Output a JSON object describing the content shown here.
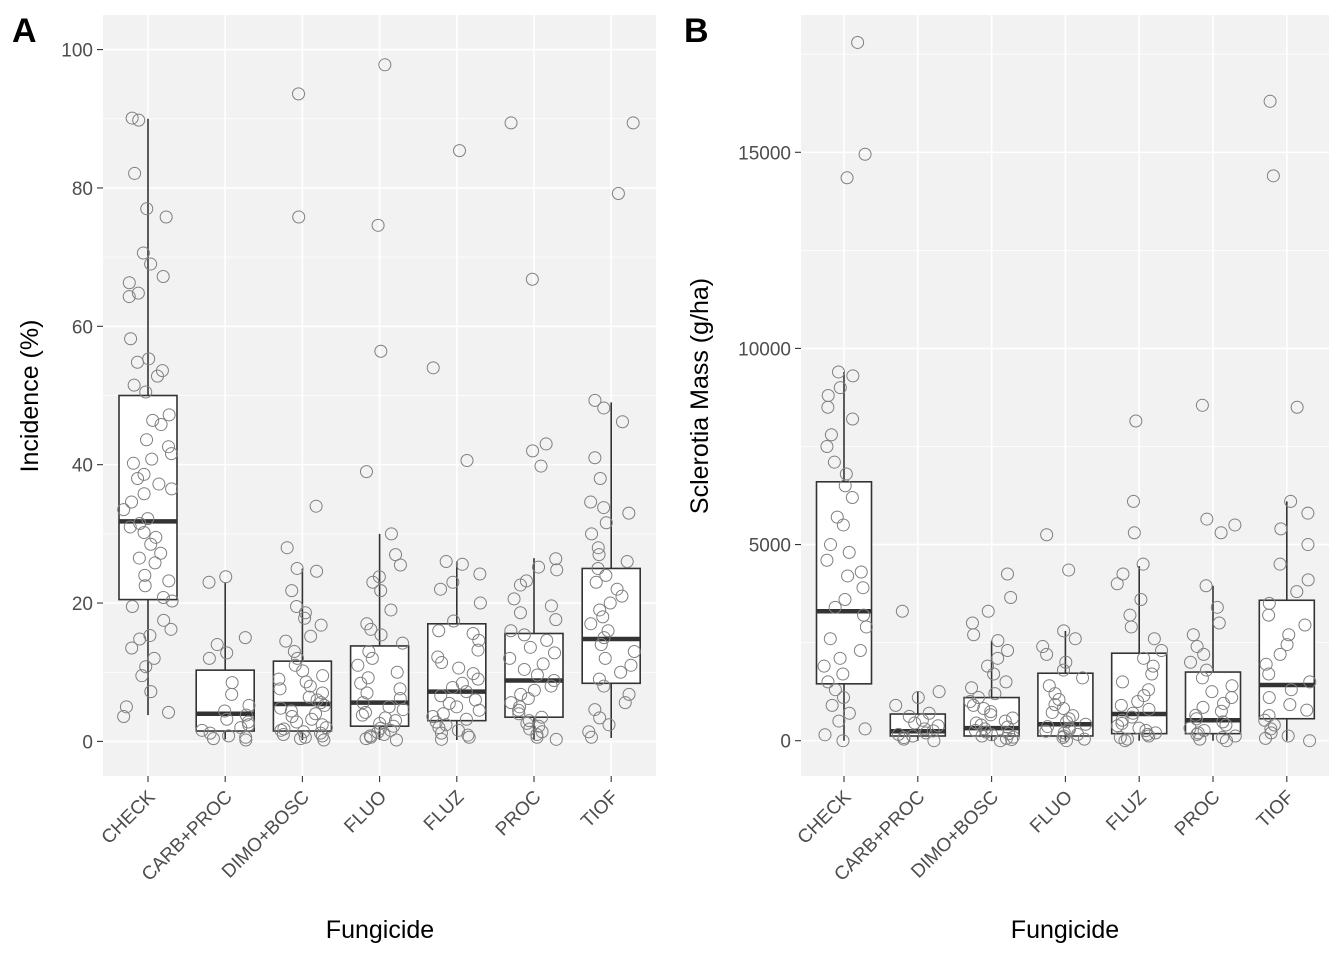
{
  "chart_data": [
    {
      "tag": "A",
      "type": "box",
      "xlabel": "Fungicide",
      "ylabel": "Incidence (%)",
      "ylim": [
        -5,
        105
      ],
      "yticks": [
        0,
        20,
        40,
        60,
        80,
        100
      ],
      "grid": true,
      "categories": [
        "CHECK",
        "CARB+PROC",
        "DIMO+BOSC",
        "FLUO",
        "FLUZ",
        "PROC",
        "TIOF"
      ],
      "boxes": [
        {
          "q1": 20.5,
          "median": 31.8,
          "q3": 50.0,
          "lower": 3.8,
          "upper": 90.0
        },
        {
          "q1": 1.5,
          "median": 4.0,
          "q3": 10.3,
          "lower": 0.3,
          "upper": 23.0
        },
        {
          "q1": 1.5,
          "median": 5.4,
          "q3": 11.6,
          "lower": 0.2,
          "upper": 25.0
        },
        {
          "q1": 2.2,
          "median": 5.6,
          "q3": 13.8,
          "lower": 0.2,
          "upper": 30.0
        },
        {
          "q1": 3.0,
          "median": 7.2,
          "q3": 17.0,
          "lower": 0.2,
          "upper": 26.0
        },
        {
          "q1": 3.5,
          "median": 8.8,
          "q3": 15.6,
          "lower": 0.2,
          "upper": 26.5
        },
        {
          "q1": 8.4,
          "median": 14.8,
          "q3": 25.0,
          "lower": 0.5,
          "upper": 49.0
        }
      ],
      "points": [
        [
          3.6,
          4.2,
          5.0,
          7.2,
          9.5,
          10.8,
          12.0,
          13.5,
          14.8,
          15.3,
          16.2,
          17.5,
          19.5,
          20.3,
          20.8,
          22.5,
          23.2,
          24.0,
          25.8,
          26.5,
          27.2,
          28.5,
          29.5,
          30.2,
          31.0,
          31.5,
          32.2,
          33.5,
          34.6,
          35.8,
          36.5,
          37.2,
          38.0,
          38.6,
          40.2,
          40.8,
          41.6,
          42.6,
          43.6,
          45.8,
          46.4,
          47.2,
          50.5,
          51.5,
          52.8,
          53.6,
          54.8,
          55.3,
          58.2,
          64.3,
          64.8,
          66.3,
          67.2,
          69.0,
          70.6,
          75.8,
          77.0,
          82.1,
          89.8,
          90.1
        ],
        [
          0.2,
          0.4,
          0.6,
          0.8,
          1.2,
          1.6,
          2.0,
          2.4,
          2.8,
          3.2,
          3.8,
          4.4,
          5.2,
          6.8,
          8.5,
          12.0,
          12.8,
          14.0,
          15.0,
          23.0,
          23.8
        ],
        [
          0.2,
          0.4,
          0.6,
          0.8,
          1.0,
          1.2,
          1.4,
          1.6,
          1.8,
          2.0,
          2.4,
          2.8,
          3.2,
          3.6,
          4.0,
          4.4,
          4.8,
          5.2,
          5.6,
          6.0,
          6.4,
          7.0,
          7.6,
          8.0,
          8.6,
          9.0,
          9.5,
          10.2,
          11.0,
          12.0,
          13.0,
          14.5,
          15.2,
          16.8,
          17.8,
          18.6,
          19.5,
          21.8,
          24.6,
          25.0,
          28.0,
          34.0,
          75.8,
          93.6
        ],
        [
          0.2,
          0.4,
          0.6,
          0.8,
          1.0,
          1.3,
          1.6,
          1.9,
          2.2,
          2.6,
          3.0,
          3.4,
          3.8,
          4.2,
          4.6,
          5.0,
          5.6,
          6.2,
          7.0,
          7.6,
          8.4,
          9.2,
          10.0,
          11.0,
          12.0,
          13.0,
          14.2,
          15.4,
          16.2,
          17.0,
          19.0,
          21.8,
          23.0,
          23.8,
          25.5,
          27.0,
          30.0,
          39.0,
          56.4,
          74.6,
          97.8
        ],
        [
          0.3,
          0.6,
          0.9,
          1.2,
          1.6,
          2.0,
          2.4,
          2.8,
          3.2,
          3.6,
          4.0,
          4.5,
          5.0,
          5.5,
          6.0,
          6.6,
          7.2,
          7.8,
          8.4,
          9.0,
          9.8,
          10.6,
          11.4,
          12.2,
          13.2,
          14.6,
          15.6,
          16.0,
          17.4,
          20.0,
          22.0,
          23.0,
          24.2,
          25.6,
          26.0,
          40.6,
          54.0,
          85.4
        ],
        [
          0.3,
          0.6,
          1.0,
          1.4,
          1.8,
          2.2,
          2.6,
          3.0,
          3.5,
          4.0,
          4.5,
          5.0,
          5.6,
          6.2,
          6.8,
          7.4,
          8.0,
          8.8,
          9.6,
          10.4,
          11.2,
          12.0,
          12.8,
          13.6,
          14.6,
          15.4,
          16.0,
          17.6,
          18.6,
          19.6,
          20.6,
          22.6,
          23.2,
          24.8,
          25.2,
          26.4,
          39.8,
          42.0,
          43.0,
          66.8,
          89.4
        ],
        [
          0.6,
          1.4,
          2.4,
          3.4,
          4.6,
          5.6,
          6.8,
          8.0,
          9.0,
          10.0,
          11.0,
          12.0,
          13.0,
          14.0,
          15.0,
          16.0,
          17.0,
          18.0,
          19.0,
          20.0,
          21.0,
          22.0,
          23.0,
          24.0,
          25.0,
          26.0,
          27.0,
          28.0,
          30.0,
          31.6,
          33.0,
          33.8,
          34.6,
          38.0,
          41.0,
          46.2,
          48.2,
          49.3,
          79.2,
          89.4
        ]
      ]
    },
    {
      "tag": "B",
      "type": "box",
      "xlabel": "Fungicide",
      "ylabel": "Sclerotia Mass (g/ha)",
      "ylim": [
        -900,
        18500
      ],
      "yticks": [
        0,
        5000,
        10000,
        15000
      ],
      "grid": true,
      "categories": [
        "CHECK",
        "CARB+PROC",
        "DIMO+BOSC",
        "FLUO",
        "FLUZ",
        "PROC",
        "TIOF"
      ],
      "boxes": [
        {
          "q1": 1450,
          "median": 3300,
          "q3": 6600,
          "lower": 0,
          "upper": 9400
        },
        {
          "q1": 120,
          "median": 240,
          "q3": 680,
          "lower": 0,
          "upper": 1250
        },
        {
          "q1": 120,
          "median": 320,
          "q3": 1100,
          "lower": 0,
          "upper": 2550
        },
        {
          "q1": 120,
          "median": 420,
          "q3": 1720,
          "lower": 0,
          "upper": 2800
        },
        {
          "q1": 180,
          "median": 680,
          "q3": 2230,
          "lower": 0,
          "upper": 4450
        },
        {
          "q1": 180,
          "median": 520,
          "q3": 1750,
          "lower": 0,
          "upper": 3950
        },
        {
          "q1": 560,
          "median": 1420,
          "q3": 3580,
          "lower": 0,
          "upper": 6100
        }
      ],
      "points": [
        [
          0,
          150,
          300,
          500,
          700,
          900,
          1100,
          1300,
          1500,
          1700,
          1900,
          2100,
          2300,
          2600,
          2900,
          3200,
          3400,
          3600,
          3900,
          4200,
          4300,
          4600,
          4800,
          5000,
          5500,
          5700,
          6200,
          6500,
          6800,
          7100,
          7500,
          7800,
          8200,
          8500,
          8800,
          9000,
          9300,
          9400,
          14350,
          14950,
          17800
        ],
        [
          0,
          40,
          80,
          120,
          160,
          200,
          250,
          300,
          380,
          450,
          520,
          620,
          700,
          900,
          1100,
          1250,
          3300
        ],
        [
          0,
          30,
          60,
          90,
          120,
          150,
          180,
          220,
          260,
          300,
          350,
          400,
          450,
          500,
          580,
          660,
          740,
          820,
          900,
          1000,
          1100,
          1200,
          1350,
          1500,
          1700,
          1900,
          2100,
          2300,
          2550,
          2700,
          3000,
          3300,
          3650,
          4250
        ],
        [
          0,
          40,
          80,
          120,
          160,
          200,
          240,
          280,
          320,
          360,
          420,
          480,
          560,
          640,
          720,
          820,
          920,
          1050,
          1200,
          1400,
          1600,
          1800,
          2000,
          2200,
          2400,
          2600,
          2800,
          4350,
          5250
        ],
        [
          0,
          40,
          80,
          120,
          160,
          200,
          260,
          320,
          380,
          440,
          520,
          600,
          700,
          800,
          900,
          1000,
          1150,
          1300,
          1500,
          1700,
          1900,
          2100,
          2300,
          2600,
          2900,
          3200,
          3600,
          4000,
          4250,
          4500,
          5300,
          6100,
          8150
        ],
        [
          0,
          40,
          80,
          120,
          160,
          200,
          260,
          320,
          400,
          480,
          560,
          650,
          750,
          850,
          950,
          1100,
          1250,
          1400,
          1600,
          1800,
          2000,
          2200,
          2400,
          2700,
          3000,
          3400,
          3950,
          5300,
          5500,
          5650,
          8550
        ],
        [
          0,
          60,
          120,
          200,
          300,
          400,
          520,
          640,
          780,
          920,
          1100,
          1300,
          1500,
          1700,
          1950,
          2200,
          2450,
          2700,
          2950,
          3200,
          3500,
          3800,
          4100,
          4500,
          5000,
          5400,
          5800,
          6100,
          8500,
          14400,
          16300
        ]
      ]
    }
  ]
}
